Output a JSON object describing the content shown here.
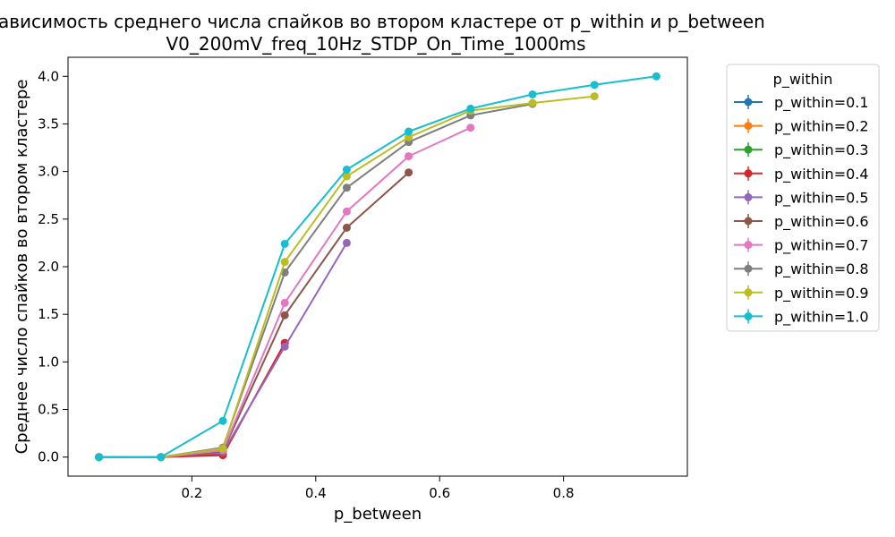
{
  "chart_data": {
    "type": "line",
    "title": "Зависимость среднего числа спайков во втором кластере от p_within и p_between",
    "subtitle": "V0_200mV_freq_10Hz_STDP_On_Time_1000ms",
    "xlabel": "p_between",
    "ylabel": "Среднее число спайков во втором кластере",
    "xlim": [
      0.0,
      1.0
    ],
    "ylim": [
      -0.2,
      4.2
    ],
    "xticks": [
      0.2,
      0.4,
      0.6,
      0.8
    ],
    "xtick_labels": [
      "0.2",
      "0.4",
      "0.6",
      "0.8"
    ],
    "yticks": [
      0.0,
      0.5,
      1.0,
      1.5,
      2.0,
      2.5,
      3.0,
      3.5,
      4.0
    ],
    "ytick_labels": [
      "0.0",
      "0.5",
      "1.0",
      "1.5",
      "2.0",
      "2.5",
      "3.0",
      "3.5",
      "4.0"
    ],
    "grid": false,
    "legend": {
      "title": "p_within",
      "placement": "outside-right"
    },
    "series": [
      {
        "name": "p_within=0.1",
        "color": "#1f77b4",
        "x": [
          0.05
        ],
        "values": [
          0.0
        ]
      },
      {
        "name": "p_within=0.2",
        "color": "#ff7f0e",
        "x": [
          0.05,
          0.15
        ],
        "values": [
          0.0,
          0.0
        ]
      },
      {
        "name": "p_within=0.3",
        "color": "#2ca02c",
        "x": [
          0.05,
          0.15,
          0.25
        ],
        "values": [
          0.0,
          0.0,
          0.03
        ]
      },
      {
        "name": "p_within=0.4",
        "color": "#d62728",
        "x": [
          0.05,
          0.15,
          0.25,
          0.35
        ],
        "values": [
          0.0,
          0.0,
          0.02,
          1.2
        ]
      },
      {
        "name": "p_within=0.5",
        "color": "#9467bd",
        "x": [
          0.05,
          0.15,
          0.25,
          0.35,
          0.45
        ],
        "values": [
          0.0,
          0.0,
          0.05,
          1.16,
          2.25
        ]
      },
      {
        "name": "p_within=0.6",
        "color": "#8c564b",
        "x": [
          0.05,
          0.15,
          0.25,
          0.35,
          0.45,
          0.55
        ],
        "values": [
          0.0,
          0.0,
          0.06,
          1.49,
          2.41,
          2.99
        ]
      },
      {
        "name": "p_within=0.7",
        "color": "#e377c2",
        "x": [
          0.05,
          0.15,
          0.25,
          0.35,
          0.45,
          0.55,
          0.65
        ],
        "values": [
          0.0,
          0.0,
          0.07,
          1.62,
          2.58,
          3.16,
          3.46
        ]
      },
      {
        "name": "p_within=0.8",
        "color": "#7f7f7f",
        "x": [
          0.05,
          0.15,
          0.25,
          0.35,
          0.45,
          0.55,
          0.65,
          0.75
        ],
        "values": [
          0.0,
          0.0,
          0.1,
          1.94,
          2.83,
          3.31,
          3.59,
          3.71
        ]
      },
      {
        "name": "p_within=0.9",
        "color": "#bcbd22",
        "x": [
          0.05,
          0.15,
          0.25,
          0.35,
          0.45,
          0.55,
          0.65,
          0.75,
          0.85
        ],
        "values": [
          0.0,
          0.0,
          0.09,
          2.05,
          2.95,
          3.36,
          3.64,
          3.72,
          3.79
        ]
      },
      {
        "name": "p_within=1.0",
        "color": "#17becf",
        "x": [
          0.05,
          0.15,
          0.25,
          0.35,
          0.45,
          0.55,
          0.65,
          0.75,
          0.85,
          0.95
        ],
        "values": [
          0.0,
          0.0,
          0.38,
          2.24,
          3.02,
          3.42,
          3.66,
          3.81,
          3.91,
          4.0
        ]
      }
    ]
  }
}
